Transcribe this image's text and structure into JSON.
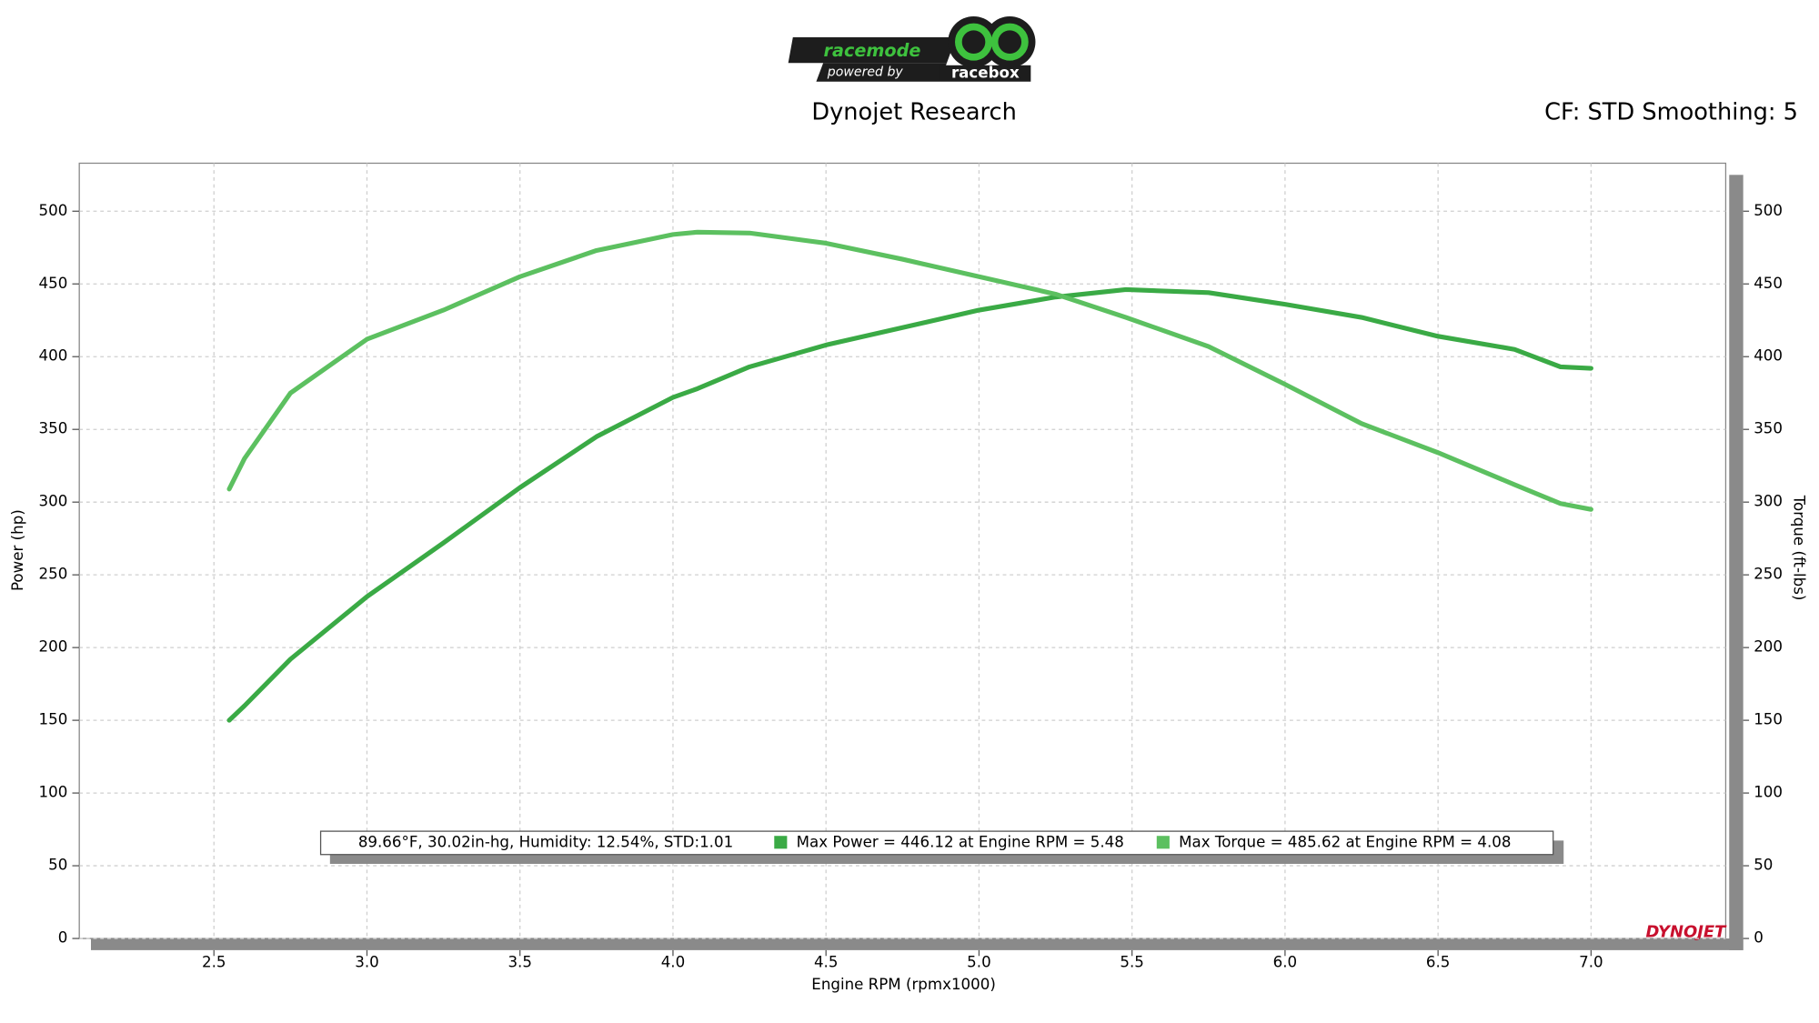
{
  "logo": {
    "brand": "racemode",
    "tagline": "powered by",
    "partner": "racebox"
  },
  "footer_logo": "DYNOJET",
  "chart_data": {
    "type": "line",
    "title": "Dynojet Research",
    "subtitle": "CF: STD Smoothing: 5",
    "x_label": "Engine RPM (rpmx1000)",
    "y_label": "Power (hp)",
    "y2_label": "Torque (ft-lbs)",
    "annotation": "89.66°F, 30.02in-hg, Humidity: 12.54%, STD:1.01",
    "x": [
      2.55,
      2.6,
      2.75,
      3.0,
      3.25,
      3.5,
      3.75,
      4.0,
      4.08,
      4.25,
      4.5,
      4.75,
      5.0,
      5.25,
      5.48,
      5.75,
      6.0,
      6.25,
      6.5,
      6.75,
      6.9,
      7.0
    ],
    "series": [
      {
        "name": "Max Power = 446.12 at Engine RPM = 5.48",
        "color": "#3aaa45",
        "values": [
          150,
          160,
          192,
          235,
          272,
          310,
          345,
          372,
          378,
          393,
          408,
          420,
          432,
          441,
          446.12,
          444,
          436,
          427,
          414,
          405,
          393,
          392
        ]
      },
      {
        "name": "Max Torque = 485.62 at Engine RPM = 4.08",
        "color": "#5cc060",
        "axis": "y2",
        "values": [
          309,
          330,
          375,
          412,
          432,
          455,
          473,
          484,
          485.62,
          485,
          478,
          467,
          455,
          443,
          427,
          407,
          381,
          354,
          334,
          312,
          299,
          295
        ]
      }
    ],
    "xlim": [
      2.06,
      7.44
    ],
    "xticks": [
      {
        "value": 2.5,
        "label": "2.5"
      },
      {
        "value": 3,
        "label": "3.0"
      },
      {
        "value": 3.5,
        "label": "3.5"
      },
      {
        "value": 4,
        "label": "4.0"
      },
      {
        "value": 4.5,
        "label": "4.5"
      },
      {
        "value": 5,
        "label": "5.0"
      },
      {
        "value": 5.5,
        "label": "5.5"
      },
      {
        "value": 6,
        "label": "6.0"
      },
      {
        "value": 6.5,
        "label": "6.5"
      },
      {
        "value": 7,
        "label": "7.0"
      }
    ],
    "ylim": [
      0,
      533
    ],
    "yticks": [
      0,
      50,
      100,
      150,
      200,
      250,
      300,
      350,
      400,
      450,
      500
    ],
    "y2lim": [
      0,
      533
    ],
    "y2ticks": [
      0,
      50,
      100,
      150,
      200,
      250,
      300,
      350,
      400,
      450,
      500
    ],
    "grid": true
  }
}
